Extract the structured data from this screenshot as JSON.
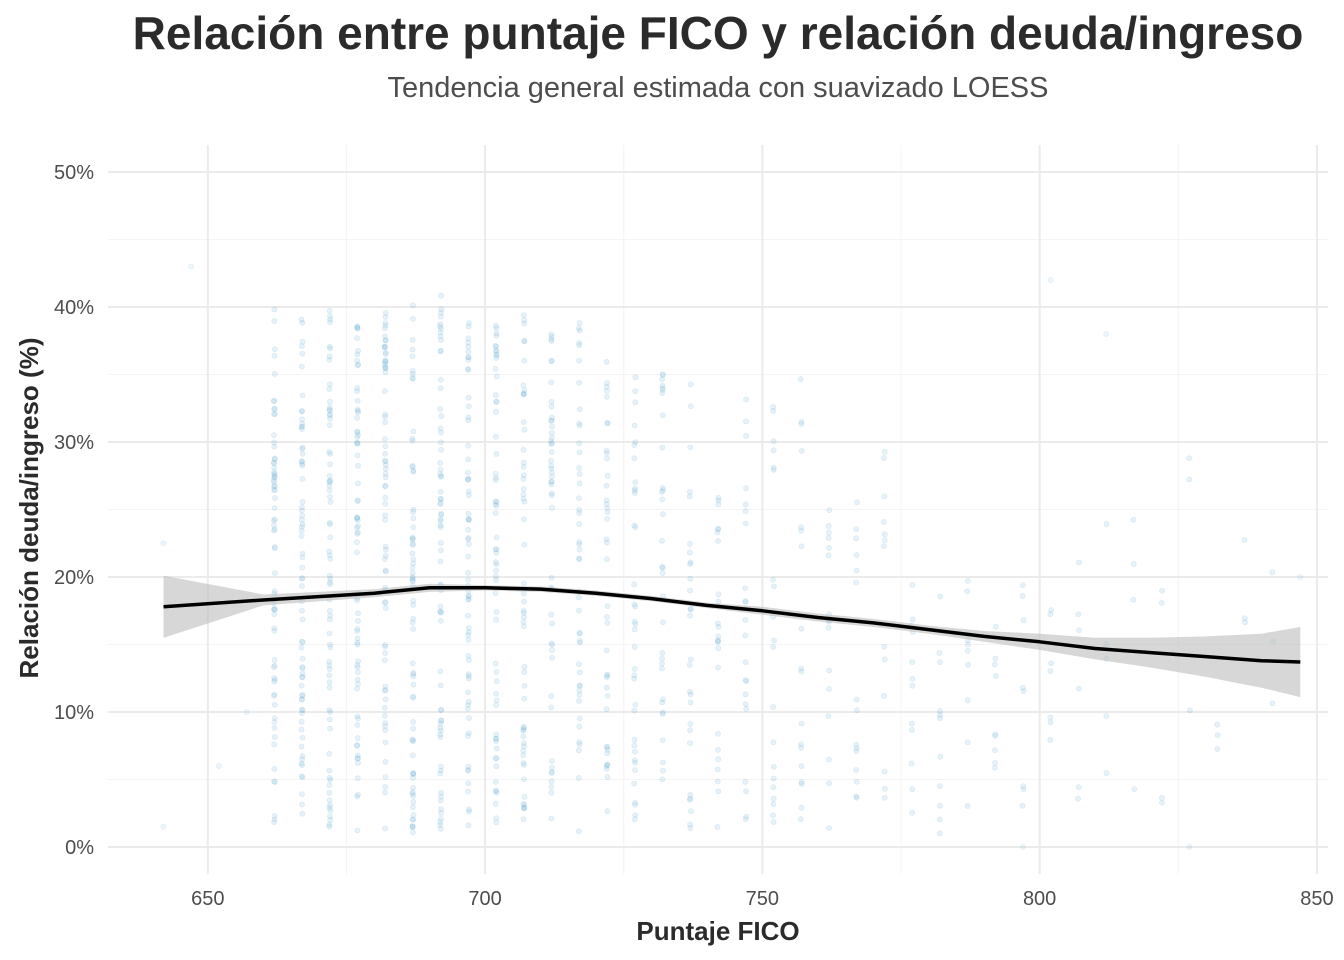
{
  "chart_data": {
    "type": "scatter",
    "title": "Relación entre puntaje FICO y relación deuda/ingreso",
    "subtitle": "Tendencia general estimada con suavizado LOESS",
    "xlabel": "Puntaje FICO",
    "ylabel": "Relación deuda/ingreso (%)",
    "xlim": [
      632,
      852
    ],
    "ylim": [
      -2,
      52
    ],
    "x_ticks": [
      650,
      700,
      750,
      800,
      850
    ],
    "x_tick_labels": [
      "650",
      "700",
      "750",
      "800",
      "850"
    ],
    "y_ticks": [
      0,
      10,
      20,
      30,
      40,
      50
    ],
    "y_tick_labels": [
      "0%",
      "10%",
      "20%",
      "30%",
      "40%",
      "50%"
    ],
    "grid": true,
    "legend": "none",
    "point_color": "#6baed6",
    "smooth_color": "#000000",
    "ribbon_color": "#bdbdbd",
    "scatter_columns": [
      {
        "x": 662,
        "n": 70,
        "ymin": 1.5,
        "ymax": 40
      },
      {
        "x": 667,
        "n": 70,
        "ymin": 1.5,
        "ymax": 40
      },
      {
        "x": 672,
        "n": 70,
        "ymin": 1,
        "ymax": 40
      },
      {
        "x": 677,
        "n": 70,
        "ymin": 1,
        "ymax": 40
      },
      {
        "x": 682,
        "n": 70,
        "ymin": 1,
        "ymax": 40
      },
      {
        "x": 687,
        "n": 70,
        "ymin": 1,
        "ymax": 41
      },
      {
        "x": 692,
        "n": 70,
        "ymin": 1,
        "ymax": 41
      },
      {
        "x": 697,
        "n": 65,
        "ymin": 1.5,
        "ymax": 40
      },
      {
        "x": 702,
        "n": 60,
        "ymin": 1,
        "ymax": 40
      },
      {
        "x": 707,
        "n": 55,
        "ymin": 1.5,
        "ymax": 40
      },
      {
        "x": 712,
        "n": 50,
        "ymin": 1.5,
        "ymax": 38
      },
      {
        "x": 717,
        "n": 45,
        "ymin": 1,
        "ymax": 39
      },
      {
        "x": 722,
        "n": 40,
        "ymin": 1,
        "ymax": 38
      },
      {
        "x": 727,
        "n": 36,
        "ymin": 1,
        "ymax": 36
      },
      {
        "x": 732,
        "n": 32,
        "ymin": 1,
        "ymax": 36
      },
      {
        "x": 737,
        "n": 28,
        "ymin": 1,
        "ymax": 35
      },
      {
        "x": 742,
        "n": 24,
        "ymin": 1,
        "ymax": 28
      },
      {
        "x": 747,
        "n": 22,
        "ymin": 1.5,
        "ymax": 34
      },
      {
        "x": 752,
        "n": 20,
        "ymin": 1,
        "ymax": 33
      },
      {
        "x": 757,
        "n": 18,
        "ymin": 2,
        "ymax": 35
      },
      {
        "x": 762,
        "n": 16,
        "ymin": 1,
        "ymax": 30
      },
      {
        "x": 767,
        "n": 15,
        "ymin": 1,
        "ymax": 26
      },
      {
        "x": 772,
        "n": 13,
        "ymin": 1,
        "ymax": 30
      },
      {
        "x": 777,
        "n": 12,
        "ymin": 1,
        "ymax": 30
      },
      {
        "x": 782,
        "n": 11,
        "ymin": 1,
        "ymax": 23
      },
      {
        "x": 787,
        "n": 10,
        "ymin": 2,
        "ymax": 20
      },
      {
        "x": 792,
        "n": 9,
        "ymin": 5,
        "ymax": 20
      },
      {
        "x": 797,
        "n": 8,
        "ymin": 3,
        "ymax": 22
      },
      {
        "x": 802,
        "n": 7,
        "ymin": 4,
        "ymax": 20
      },
      {
        "x": 807,
        "n": 6,
        "ymin": 2,
        "ymax": 23
      },
      {
        "x": 812,
        "n": 5,
        "ymin": 3,
        "ymax": 25
      },
      {
        "x": 817,
        "n": 4,
        "ymin": 2,
        "ymax": 27
      },
      {
        "x": 822,
        "n": 4,
        "ymin": 3,
        "ymax": 23
      },
      {
        "x": 827,
        "n": 3,
        "ymin": 5,
        "ymax": 30
      },
      {
        "x": 832,
        "n": 3,
        "ymin": 4,
        "ymax": 27
      },
      {
        "x": 837,
        "n": 3,
        "ymin": 4,
        "ymax": 28
      },
      {
        "x": 842,
        "n": 3,
        "ymin": 4,
        "ymax": 22
      }
    ],
    "scatter_extra": [
      {
        "x": 642,
        "y": 1.5
      },
      {
        "x": 642,
        "y": 22.5
      },
      {
        "x": 647,
        "y": 43
      },
      {
        "x": 652,
        "y": 6
      },
      {
        "x": 657,
        "y": 10
      },
      {
        "x": 847,
        "y": 20
      },
      {
        "x": 802,
        "y": 42
      },
      {
        "x": 812,
        "y": 38
      },
      {
        "x": 797,
        "y": 0
      },
      {
        "x": 827,
        "y": 0
      }
    ],
    "smooth": {
      "x": [
        642,
        660,
        680,
        690,
        700,
        710,
        720,
        730,
        740,
        750,
        760,
        770,
        780,
        790,
        800,
        810,
        820,
        830,
        840,
        847
      ],
      "y": [
        17.8,
        18.3,
        18.8,
        19.2,
        19.2,
        19.1,
        18.8,
        18.4,
        17.9,
        17.5,
        17.0,
        16.6,
        16.1,
        15.6,
        15.2,
        14.7,
        14.4,
        14.1,
        13.8,
        13.7
      ],
      "ymin": [
        15.5,
        17.9,
        18.5,
        18.9,
        19.0,
        18.9,
        18.6,
        18.2,
        17.7,
        17.2,
        16.7,
        16.3,
        15.8,
        15.2,
        14.6,
        13.9,
        13.3,
        12.6,
        11.8,
        11.1
      ],
      "ymax": [
        20.1,
        18.7,
        19.1,
        19.5,
        19.4,
        19.3,
        19.0,
        18.6,
        18.1,
        17.8,
        17.3,
        16.9,
        16.4,
        16.0,
        15.8,
        15.5,
        15.5,
        15.6,
        15.8,
        16.3
      ]
    }
  }
}
